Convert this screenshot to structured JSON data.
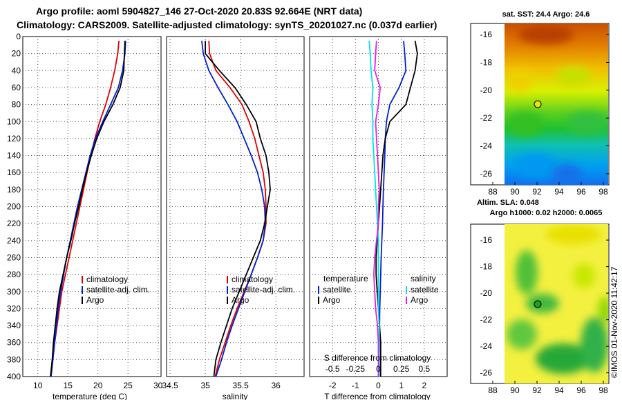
{
  "header": {
    "title_line1": "Argo profile: aoml 5904827_146 27-Oct-2020 20.83S 92.664E (NRT data)",
    "title_line2": "Climatology: CARS2009. Satellite-adjusted climatology: synTS_20201027.nc (0.037d earlier)"
  },
  "colors": {
    "climatology": "#e00000",
    "satellite": "#0020d0",
    "argo": "#000000",
    "satellite_salinity": "#00e0e8",
    "argo_salinity": "#e020e0"
  },
  "chart_data": [
    {
      "type": "line",
      "name": "temperature-panel",
      "xlabel": "temperature (deg C)",
      "xlim": [
        7.5,
        30.5
      ],
      "ylim": [
        400,
        0
      ],
      "x_ticks": [
        "10",
        "15",
        "20",
        "25",
        "30"
      ],
      "y_ticks": [
        "0",
        "20",
        "40",
        "60",
        "80",
        "100",
        "120",
        "140",
        "160",
        "180",
        "200",
        "220",
        "240",
        "260",
        "280",
        "300",
        "320",
        "340",
        "360",
        "380",
        "400"
      ],
      "legend": [
        "climatology",
        "satellite-adj. clim.",
        "Argo"
      ],
      "series": [
        {
          "name": "climatology",
          "depth": [
            5,
            20,
            40,
            60,
            80,
            100,
            120,
            140,
            160,
            180,
            200,
            220,
            240,
            260,
            280,
            300,
            320,
            340,
            360,
            380,
            400
          ],
          "values": [
            23.5,
            23.3,
            22.8,
            22.1,
            21.3,
            20.3,
            19.5,
            18.8,
            18.2,
            17.6,
            17.0,
            16.4,
            15.8,
            15.2,
            14.6,
            14.0,
            13.6,
            13.2,
            12.8,
            12.5,
            12.2
          ]
        },
        {
          "name": "satellite-adj. clim.",
          "depth": [
            5,
            20,
            40,
            60,
            80,
            100,
            120,
            140,
            160,
            180,
            200,
            220,
            240,
            260,
            280,
            300,
            320,
            340,
            360,
            380,
            400
          ],
          "values": [
            24.6,
            24.5,
            24.1,
            23.4,
            22.1,
            20.8,
            19.6,
            18.7,
            18.0,
            17.3,
            16.6,
            16.0,
            15.4,
            14.8,
            14.3,
            13.8,
            13.4,
            13.1,
            12.8,
            12.5,
            12.2
          ]
        },
        {
          "name": "Argo",
          "depth": [
            5,
            20,
            40,
            60,
            80,
            100,
            120,
            140,
            160,
            180,
            200,
            220,
            240,
            260,
            280,
            300,
            320,
            340,
            360,
            380,
            400
          ],
          "values": [
            24.5,
            24.4,
            24.3,
            23.7,
            22.5,
            21.0,
            19.8,
            18.9,
            18.1,
            17.4,
            16.8,
            16.1,
            15.5,
            14.8,
            14.2,
            13.6,
            13.2,
            12.9,
            12.6,
            12.4,
            12.1
          ]
        }
      ]
    },
    {
      "type": "line",
      "name": "salinity-panel",
      "xlabel": "salinity",
      "xlim": [
        34.45,
        36.4
      ],
      "ylim": [
        400,
        0
      ],
      "x_ticks": [
        "34.5",
        "35",
        "35.5",
        "36"
      ],
      "legend": [
        "climatology",
        "satellite-adj. clim.",
        "Argo"
      ],
      "series": [
        {
          "name": "climatology",
          "depth": [
            5,
            20,
            40,
            60,
            80,
            100,
            120,
            140,
            160,
            180,
            200,
            220,
            240,
            260,
            280,
            300,
            320,
            340,
            360,
            380,
            400
          ],
          "values": [
            35.05,
            35.06,
            35.15,
            35.35,
            35.52,
            35.62,
            35.7,
            35.76,
            35.82,
            35.85,
            35.86,
            35.86,
            35.82,
            35.74,
            35.65,
            35.55,
            35.45,
            35.36,
            35.28,
            35.2,
            35.14
          ]
        },
        {
          "name": "satellite-adj. clim.",
          "depth": [
            5,
            20,
            40,
            60,
            80,
            100,
            120,
            140,
            160,
            180,
            200,
            220,
            240,
            260,
            280,
            300,
            320,
            340,
            360,
            380,
            400
          ],
          "values": [
            34.95,
            34.97,
            35.05,
            35.18,
            35.32,
            35.45,
            35.55,
            35.65,
            35.74,
            35.8,
            35.84,
            35.85,
            35.82,
            35.74,
            35.65,
            35.56,
            35.47,
            35.38,
            35.3,
            35.23,
            35.15
          ]
        },
        {
          "name": "Argo",
          "depth": [
            5,
            20,
            40,
            60,
            80,
            100,
            120,
            140,
            160,
            180,
            200,
            220,
            240,
            260,
            280,
            300,
            320,
            340,
            360,
            380,
            400
          ],
          "values": [
            35.0,
            35.0,
            35.2,
            35.42,
            35.58,
            35.72,
            35.78,
            35.86,
            35.9,
            35.92,
            35.88,
            35.84,
            35.78,
            35.68,
            35.58,
            35.48,
            35.38,
            35.3,
            35.22,
            35.15,
            35.12
          ]
        }
      ]
    },
    {
      "type": "line",
      "name": "difference-panel",
      "xlabel": "T difference from climatology",
      "top_axis_label": "S difference from climatology",
      "xlim": [
        -3.0,
        3.0
      ],
      "ylim": [
        400,
        0
      ],
      "x_ticks": [
        "-2",
        "-1",
        "0",
        "1",
        "2"
      ],
      "s_ticks": [
        "-0.5",
        "-0.25",
        "0",
        "0.25",
        "0.5"
      ],
      "legend_temperature_title": "temperature",
      "legend_salinity_title": "salinity",
      "legend_temperature": [
        "satellite",
        "Argo"
      ],
      "legend_salinity": [
        "satellite",
        "Argo"
      ],
      "series": [
        {
          "name": "temperature satellite",
          "depth": [
            5,
            20,
            40,
            60,
            80,
            100,
            120,
            140,
            160,
            180,
            200,
            220,
            240,
            260,
            280,
            300,
            320,
            340,
            360,
            380,
            400
          ],
          "values": [
            1.1,
            1.15,
            1.2,
            0.9,
            0.5,
            0.35,
            0.3,
            0.28,
            0.25,
            0.22,
            0.2,
            0.18,
            0.15,
            0.12,
            0.1,
            0.08,
            0.06,
            0.05,
            0.04,
            0.03,
            0.02
          ]
        },
        {
          "name": "temperature Argo",
          "depth": [
            5,
            20,
            40,
            60,
            80,
            100,
            120,
            140,
            160,
            180,
            200,
            220,
            240,
            260,
            280,
            300,
            320,
            340,
            360,
            380,
            400
          ],
          "values": [
            1.6,
            1.7,
            1.6,
            1.4,
            1.2,
            0.5,
            0.3,
            0.2,
            0.15,
            0.1,
            0.05,
            0.0,
            -0.05,
            -0.1,
            -0.1,
            -0.05,
            0.0,
            0.05,
            0.1,
            0.1,
            0.1
          ]
        },
        {
          "name": "salinity satellite",
          "depth": [
            5,
            20,
            40,
            60,
            80,
            100,
            120,
            140,
            160,
            180,
            200,
            220,
            240,
            260,
            280,
            300,
            320,
            340,
            360,
            380,
            400
          ],
          "values": [
            -0.1,
            -0.09,
            -0.08,
            -0.06,
            -0.07,
            -0.06,
            -0.06,
            -0.05,
            -0.04,
            -0.03,
            -0.02,
            -0.01,
            0.0,
            0.0,
            0.0,
            0.0,
            0.0,
            0.01,
            0.01,
            0.01,
            0.01
          ]
        },
        {
          "name": "salinity Argo",
          "depth": [
            5,
            20,
            40,
            60,
            80,
            100,
            120,
            140,
            160,
            180,
            200,
            220,
            240,
            260,
            280,
            300,
            320,
            340,
            360,
            380,
            400
          ],
          "values": [
            -0.02,
            -0.03,
            -0.04,
            0.02,
            0.0,
            -0.03,
            -0.02,
            -0.01,
            0.0,
            0.01,
            0.0,
            0.0,
            -0.02,
            -0.04,
            -0.05,
            -0.04,
            -0.03,
            -0.01,
            0.0,
            0.0,
            0.0
          ]
        }
      ]
    },
    {
      "type": "heatmap",
      "name": "sst-map",
      "title": "sat. SST: 24.4 Argo: 24.6",
      "xlim": [
        86,
        98.5
      ],
      "ylim": [
        -26.8,
        -15.2
      ],
      "x_ticks": [
        "88",
        "90",
        "92",
        "94",
        "96",
        "98"
      ],
      "y_ticks": [
        "-16",
        "-18",
        "-20",
        "-22",
        "-24",
        "-26"
      ],
      "marker": {
        "lon": 92.664,
        "lat": -20.83
      }
    },
    {
      "type": "heatmap",
      "name": "sla-map",
      "title": "Altim. SLA: 0.048",
      "subtitle": "Argo h1000: 0.02 h2000: 0.0065",
      "xlim": [
        86,
        98.5
      ],
      "ylim": [
        -26.8,
        -14.8
      ],
      "x_ticks": [
        "88",
        "90",
        "92",
        "94",
        "96",
        "98"
      ],
      "y_ticks": [
        "-16",
        "-18",
        "-20",
        "-22",
        "-24",
        "-26"
      ],
      "marker": {
        "lon": 92.664,
        "lat": -20.83
      }
    }
  ],
  "footer": {
    "credit": "©IMOS 01-Nov-2020 11:42:17"
  }
}
